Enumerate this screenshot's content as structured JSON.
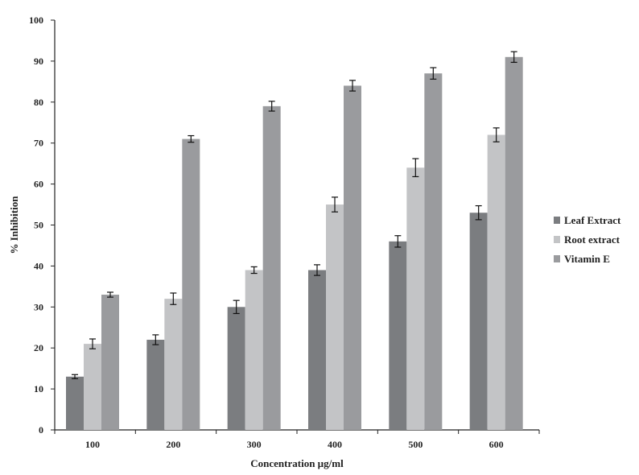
{
  "chart_data": {
    "type": "bar",
    "title": "",
    "xlabel": "Concentration µg/ml",
    "ylabel": "% Inhibition",
    "ylim": [
      0,
      100
    ],
    "yticks": [
      "0",
      "10",
      "20",
      "30",
      "40",
      "50",
      "60",
      "70",
      "80",
      "90",
      "100"
    ],
    "categories": [
      "100",
      "200",
      "300",
      "400",
      "500",
      "600"
    ],
    "series": [
      {
        "name": "Leaf Extract",
        "color": "#7b7d80",
        "values": [
          13,
          22,
          30,
          39,
          46,
          53
        ],
        "errors": [
          0.5,
          1.2,
          1.6,
          1.3,
          1.4,
          1.7
        ]
      },
      {
        "name": "Root extract",
        "color": "#c3c4c6",
        "values": [
          21,
          32,
          39,
          55,
          64,
          72
        ],
        "errors": [
          1.2,
          1.4,
          0.8,
          1.8,
          2.2,
          1.7
        ]
      },
      {
        "name": "Vitamin E",
        "color": "#9a9b9e",
        "values": [
          33,
          71,
          79,
          84,
          87,
          91
        ],
        "errors": [
          0.6,
          0.8,
          1.2,
          1.3,
          1.4,
          1.3
        ]
      }
    ],
    "grid": false,
    "legend_position": "right"
  }
}
